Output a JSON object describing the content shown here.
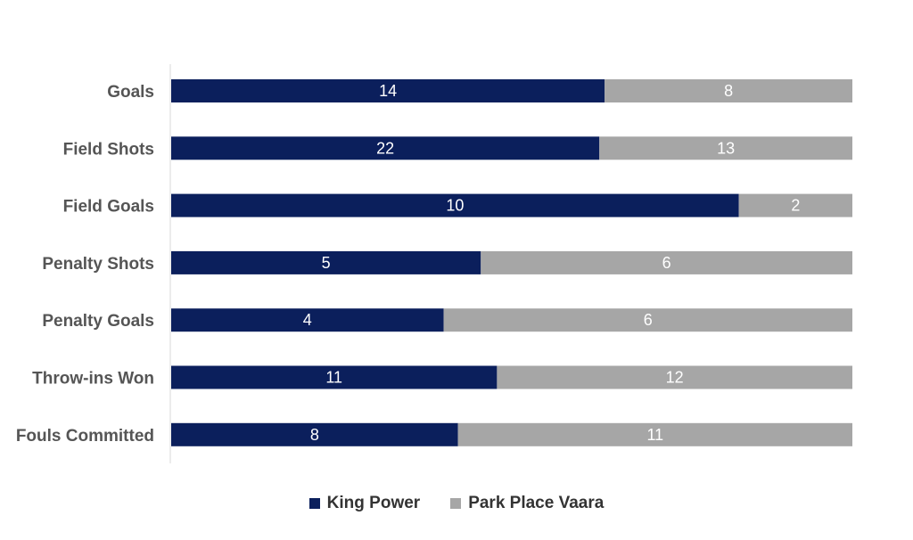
{
  "chart_data": {
    "type": "bar",
    "orientation": "horizontal",
    "stacked": "percent",
    "categories": [
      "Goals",
      "Field Shots",
      "Field Goals",
      "Penalty Shots",
      "Penalty Goals",
      "Throw-ins Won",
      "Fouls Committed"
    ],
    "series": [
      {
        "name": "King Power",
        "color": "#0b1f5c",
        "values": [
          14,
          22,
          10,
          5,
          4,
          11,
          8
        ]
      },
      {
        "name": "Park Place Vaara",
        "color": "#a6a6a6",
        "values": [
          8,
          13,
          2,
          6,
          6,
          12,
          11
        ]
      }
    ],
    "title": "",
    "xlabel": "",
    "ylabel": "",
    "grid": false,
    "legend": "bottom"
  }
}
